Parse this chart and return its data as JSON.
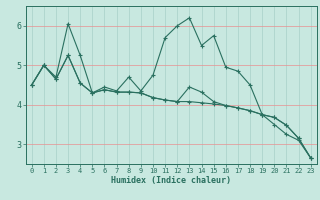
{
  "xlabel": "Humidex (Indice chaleur)",
  "bg_color": "#c8e8e0",
  "h_grid_color": "#e89090",
  "v_grid_color": "#a8d0c8",
  "line_color": "#2a7060",
  "xlim": [
    -0.5,
    23.5
  ],
  "ylim": [
    2.5,
    6.5
  ],
  "yticks": [
    3,
    4,
    5,
    6
  ],
  "xticks": [
    0,
    1,
    2,
    3,
    4,
    5,
    6,
    7,
    8,
    9,
    10,
    11,
    12,
    13,
    14,
    15,
    16,
    17,
    18,
    19,
    20,
    21,
    22,
    23
  ],
  "line1_x": [
    0,
    1,
    2,
    3,
    4,
    5,
    6,
    7,
    8,
    9,
    10,
    11,
    12,
    13,
    14,
    15,
    16,
    17,
    18,
    19,
    20,
    21,
    22,
    23
  ],
  "line1_y": [
    4.5,
    5.0,
    4.7,
    6.05,
    5.25,
    4.3,
    4.45,
    4.35,
    4.7,
    4.35,
    4.75,
    5.7,
    6.0,
    6.2,
    5.5,
    5.75,
    4.95,
    4.85,
    4.5,
    3.75,
    3.5,
    3.25,
    3.1,
    2.65
  ],
  "line2_x": [
    0,
    1,
    2,
    3,
    4,
    5,
    6,
    7,
    8,
    9,
    10,
    11,
    12,
    13,
    14,
    15,
    16,
    17,
    18,
    19,
    20,
    21,
    22,
    23
  ],
  "line2_y": [
    4.5,
    5.0,
    4.65,
    5.25,
    4.55,
    4.3,
    4.38,
    4.32,
    4.32,
    4.3,
    4.18,
    4.12,
    4.08,
    4.08,
    4.05,
    4.02,
    3.98,
    3.92,
    3.85,
    3.75,
    3.68,
    3.48,
    3.15,
    2.65
  ],
  "line3_x": [
    0,
    1,
    2,
    3,
    4,
    5,
    6,
    7,
    8,
    9,
    10,
    11,
    12,
    13,
    14,
    15,
    16,
    17,
    18,
    19,
    20,
    21,
    22,
    23
  ],
  "line3_y": [
    4.5,
    5.0,
    4.65,
    5.25,
    4.55,
    4.3,
    4.38,
    4.32,
    4.32,
    4.3,
    4.18,
    4.12,
    4.08,
    4.45,
    4.32,
    4.08,
    3.98,
    3.92,
    3.85,
    3.75,
    3.68,
    3.48,
    3.15,
    2.65
  ]
}
